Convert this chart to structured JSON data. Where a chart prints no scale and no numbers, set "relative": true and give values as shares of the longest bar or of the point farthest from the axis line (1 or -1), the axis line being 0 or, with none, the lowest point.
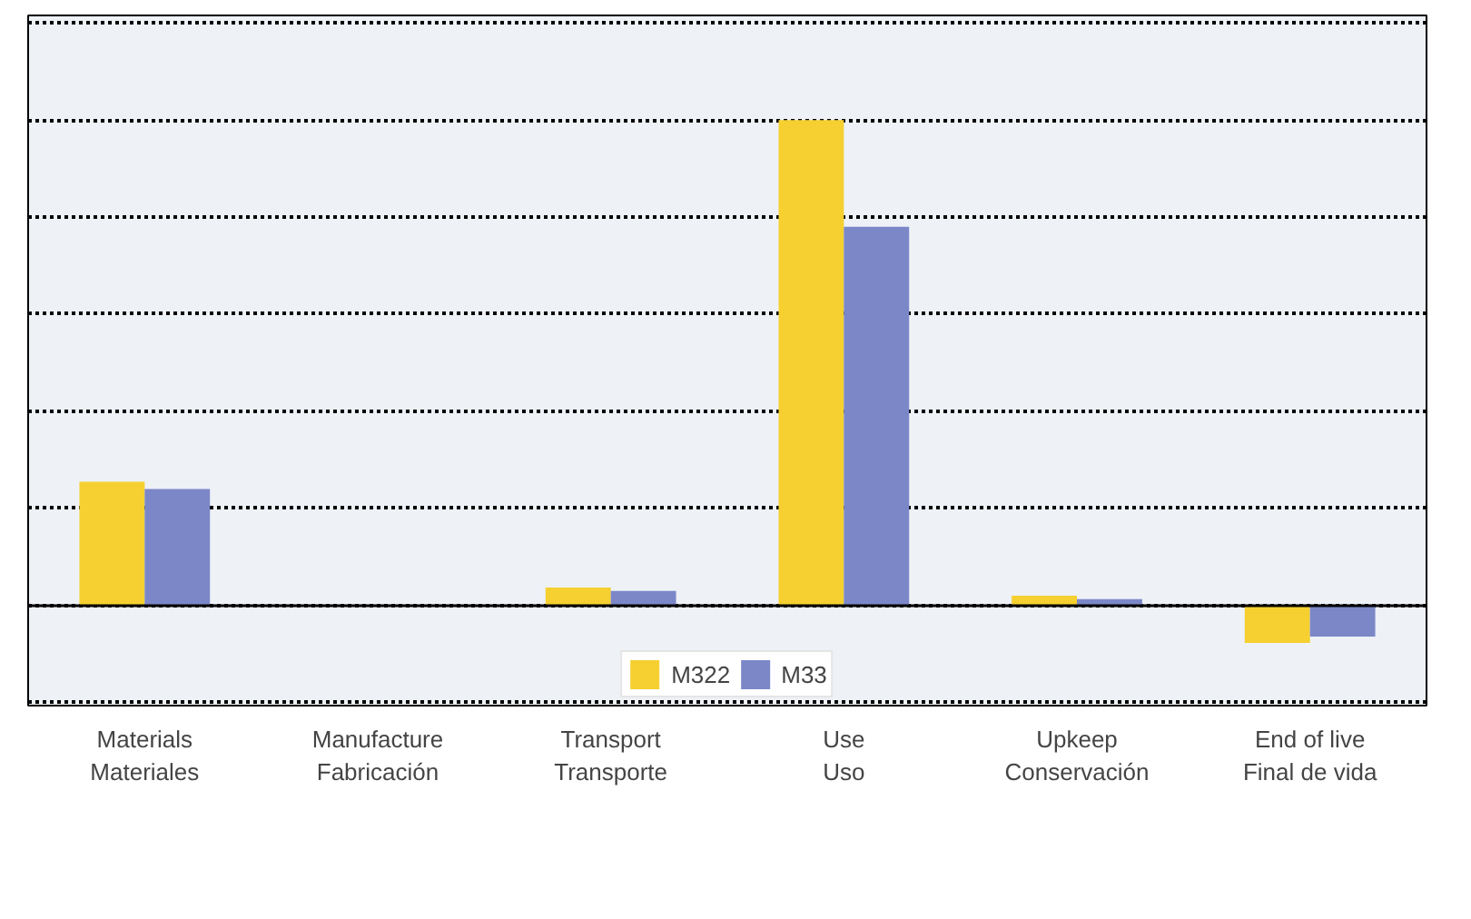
{
  "chart_data": {
    "type": "bar",
    "relative": true,
    "grid": "y",
    "legend": "bottom",
    "categories": [
      "Materials\nMateriales",
      "Manufacture\nFabricación",
      "Transport\nTransporte",
      "Use\nUso",
      "Upkeep\nConservación",
      "End of live\nFinal de vida"
    ],
    "series": [
      {
        "name": "M322",
        "color": "#f5d030",
        "values": [
          0.255,
          0,
          0.037,
          1,
          0.02,
          -0.077
        ]
      },
      {
        "name": "M33",
        "color": "#7c87c8",
        "values": [
          0.24,
          0,
          0.03,
          0.78,
          0.013,
          -0.064
        ]
      }
    ]
  }
}
